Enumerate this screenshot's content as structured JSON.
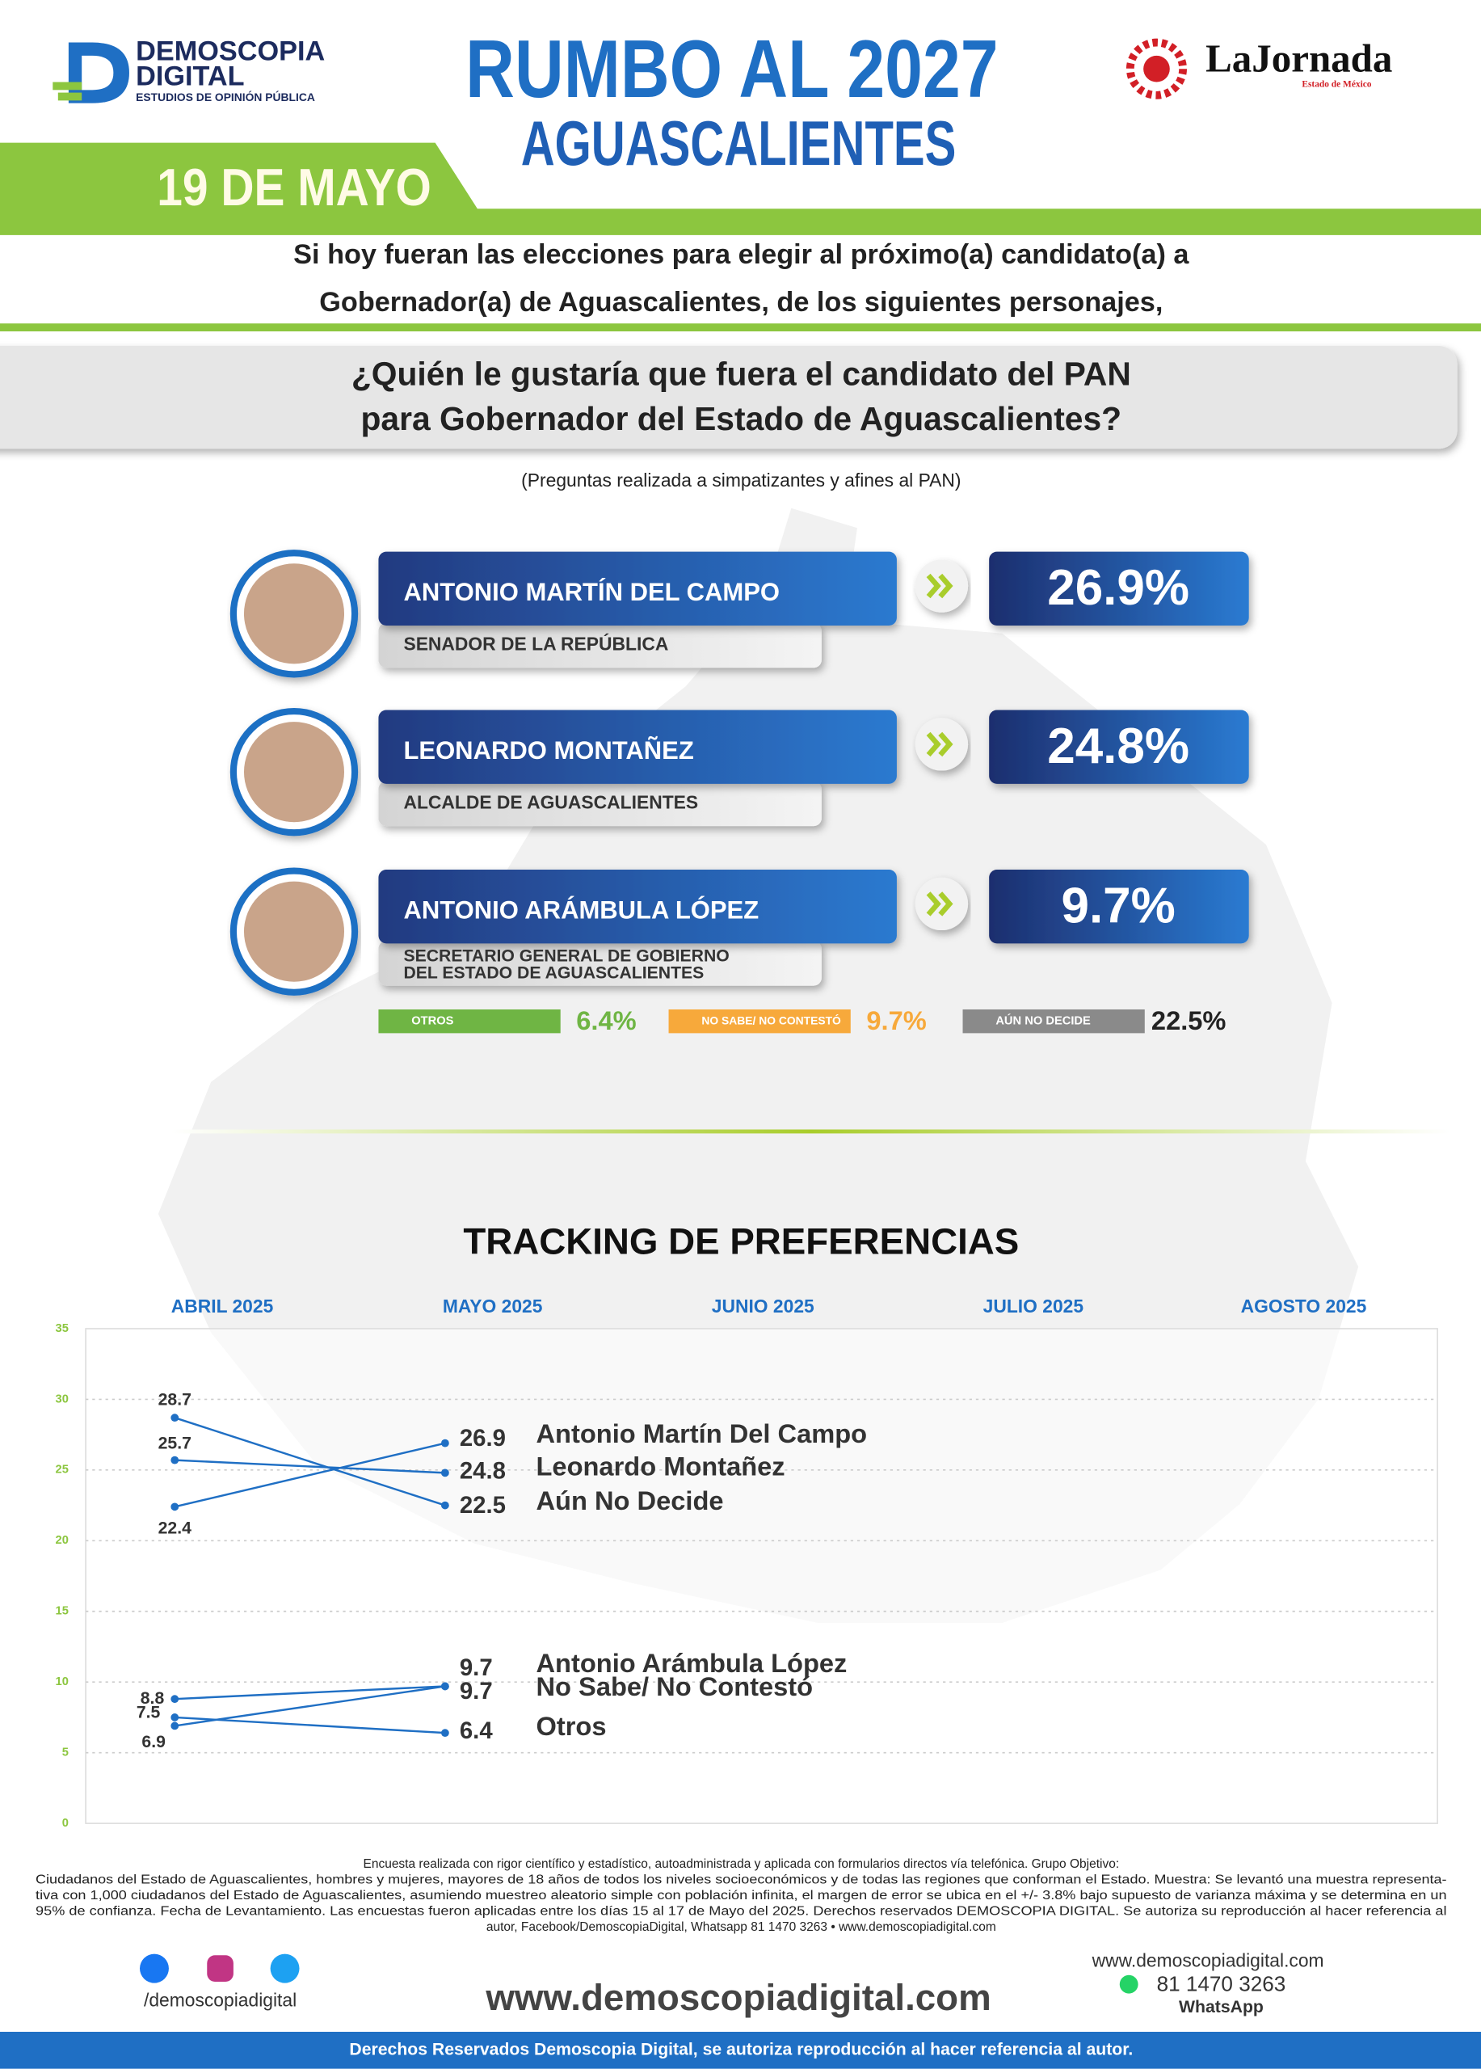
{
  "header": {
    "brand": "DEMOSCOPIA",
    "brand2": "DIGITAL",
    "brand_sub": "ESTUDIOS DE OPINIÓN PÚBLICA",
    "title": "RUMBO AL 2027",
    "subtitle": "AGUASCALIENTES",
    "date": "19 DE MAYO",
    "partner": "LaJornada",
    "partner_sub": "Estado de México"
  },
  "intro": [
    "Si hoy fueran las elecciones para elegir al próximo(a) candidato(a) a",
    "Gobernador(a) de Aguascalientes, de los siguientes personajes,"
  ],
  "question": [
    "¿Quién le gustaría que fuera el candidato del PAN",
    "para Gobernador del Estado de Aguascalientes?"
  ],
  "note": "(Preguntas realizada a simpatizantes y afines al PAN)",
  "candidates": [
    {
      "name": "ANTONIO MARTÍN DEL CAMPO",
      "role": [
        "SENADOR DE LA REPÚBLICA"
      ],
      "value": 26.9,
      "value_label": "26.9%"
    },
    {
      "name": "LEONARDO MONTAÑEZ",
      "role": [
        "ALCALDE DE AGUASCALIENTES"
      ],
      "value": 24.8,
      "value_label": "24.8%"
    },
    {
      "name": "ANTONIO ARÁMBULA LÓPEZ",
      "role": [
        "SECRETARIO GENERAL DE GOBIERNO",
        "DEL ESTADO DE AGUASCALIENTES"
      ],
      "value": 9.7,
      "value_label": "9.7%"
    }
  ],
  "others": [
    {
      "name": "OTROS",
      "value": 6.4,
      "value_label": "6.4%",
      "color": "#6fb544"
    },
    {
      "name": "NO SABE/ NO CONTESTÓ",
      "value": 9.7,
      "value_label": "9.7%",
      "color": "#f7a93b"
    },
    {
      "name": "AÚN NO DECIDE",
      "value": 22.5,
      "value_label": "22.5%",
      "color": "#8a8a8a"
    }
  ],
  "chart_data": {
    "type": "line",
    "title": "TRACKING DE PREFERENCIAS",
    "categories": [
      "ABRIL 2025",
      "MAYO 2025",
      "JUNIO 2025",
      "JULIO 2025",
      "AGOSTO 2025"
    ],
    "ylim": [
      0,
      35
    ],
    "yticks": [
      0,
      5,
      10,
      15,
      20,
      25,
      30,
      35
    ],
    "grid": true,
    "series": [
      {
        "name": "Antonio Martín Del Campo",
        "color": "#1f6fc4",
        "values": [
          22.4,
          26.9,
          null,
          null,
          null
        ]
      },
      {
        "name": "Leonardo Montañez",
        "color": "#1f6fc4",
        "values": [
          25.7,
          24.8,
          null,
          null,
          null
        ]
      },
      {
        "name": "Aún No Decide",
        "color": "#1f6fc4",
        "values": [
          28.7,
          22.5,
          null,
          null,
          null
        ]
      },
      {
        "name": "Antonio Arámbula López",
        "color": "#1f6fc4",
        "values": [
          8.8,
          9.7,
          null,
          null,
          null
        ]
      },
      {
        "name": "No Sabe/ No Contestó",
        "color": "#1f6fc4",
        "values": [
          6.9,
          9.7,
          null,
          null,
          null
        ]
      },
      {
        "name": "Otros",
        "color": "#1f6fc4",
        "values": [
          7.5,
          6.4,
          null,
          null,
          null
        ]
      }
    ]
  },
  "footer": {
    "disclaimer": [
      "Encuesta realizada con rigor científico y estadístico, autoadministrada y aplicada con formularios directos vía telefónica. Grupo Objetivo:",
      "Ciudadanos del Estado de Aguascalientes, hombres y mujeres, mayores de 18 años de todos los niveles socioeconómicos y de todas las regiones que conforman el Estado. Muestra: Se levantó una muestra representa-",
      "tiva con 1,000 ciudadanos del Estado de Aguascalientes, asumiendo muestreo aleatorio simple con población infinita, el margen de error se ubica en el +/- 3.8% bajo supuesto de varianza máxima y se determina en un",
      "95% de confianza. Fecha de Levantamiento. Las encuestas fueron aplicadas entre los días 15 al 17 de Mayo del 2025. Derechos reservados DEMOSCOPIA DIGITAL. Se autoriza su reproducción al hacer referencia al",
      "autor, Facebook/DemoscopiaDigital, Whatsapp 81 1470 3263 • www.demoscopiadigital.com"
    ],
    "social": "/demoscopiadigital",
    "website": "www.demoscopiadigital.com",
    "website_small": "www.demoscopiadigital.com",
    "phone": "81 1470 3263",
    "whatsapp": "WhatsApp",
    "rights": "Derechos Reservados Demoscopia Digital, se autoriza reproducción al hacer referencia al autor."
  }
}
